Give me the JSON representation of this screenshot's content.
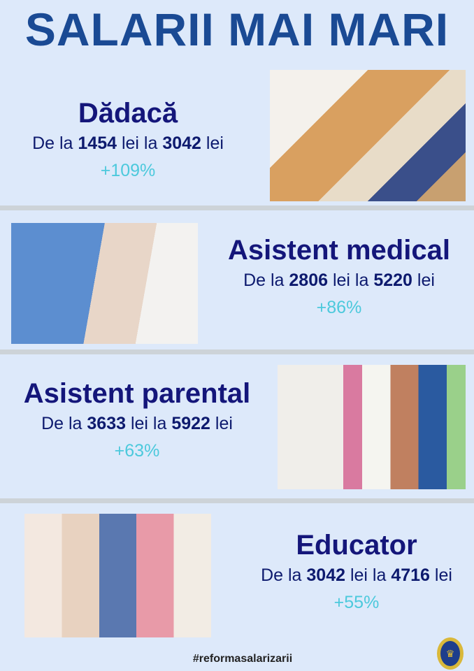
{
  "title": "SALARII MAI MARI",
  "items": [
    {
      "name": "Dădacă",
      "prefix": "De la",
      "from": "1454",
      "mid": "lei la",
      "to": "3042",
      "suffix": "lei",
      "pct": "+109%"
    },
    {
      "name": "Asistent medical",
      "prefix": "De la",
      "from": "2806",
      "mid": "lei la",
      "to": "5220",
      "suffix": "lei",
      "pct": "+86%"
    },
    {
      "name": "Asistent parental",
      "prefix": "De la",
      "from": "3633",
      "mid": "lei la",
      "to": "5922",
      "suffix": "lei",
      "pct": "+63%"
    },
    {
      "name": "Educator",
      "prefix": "De la",
      "from": "3042",
      "mid": "lei la",
      "to": "4716",
      "suffix": "lei",
      "pct": "+55%"
    }
  ],
  "hashtag": "#reformasalarizarii",
  "colors": {
    "background": "#dde9fa",
    "title": "#1a4a94",
    "heading": "#14167a",
    "percent": "#4cc9dc"
  }
}
